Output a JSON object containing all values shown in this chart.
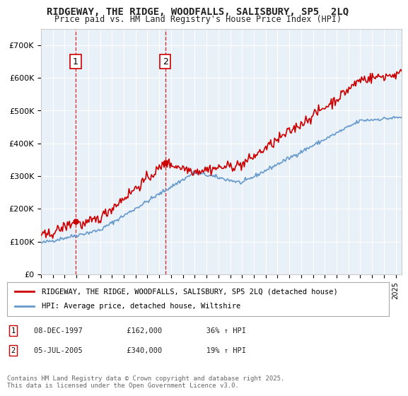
{
  "title_line1": "RIDGEWAY, THE RIDGE, WOODFALLS, SALISBURY, SP5  2LQ",
  "title_line2": "Price paid vs. HM Land Registry's House Price Index (HPI)",
  "ylabel": "",
  "background_color": "#ffffff",
  "plot_bg_color": "#e8f0f8",
  "grid_color": "#ffffff",
  "red_line_color": "#cc0000",
  "blue_line_color": "#6699cc",
  "marker1_x": 1997.92,
  "marker1_y": 162000,
  "marker2_x": 2005.5,
  "marker2_y": 340000,
  "legend_label_red": "RIDGEWAY, THE RIDGE, WOODFALLS, SALISBURY, SP5 2LQ (detached house)",
  "legend_label_blue": "HPI: Average price, detached house, Wiltshire",
  "note1": "1     08-DEC-1997          £162,000          36% ↑ HPI",
  "note2": "2     05-JUL-2005          £340,000          19% ↑ HPI",
  "footer": "Contains HM Land Registry data © Crown copyright and database right 2025.\nThis data is licensed under the Open Government Licence v3.0.",
  "ylim": [
    0,
    750000
  ],
  "xlim_start": 1995,
  "xlim_end": 2025.5
}
